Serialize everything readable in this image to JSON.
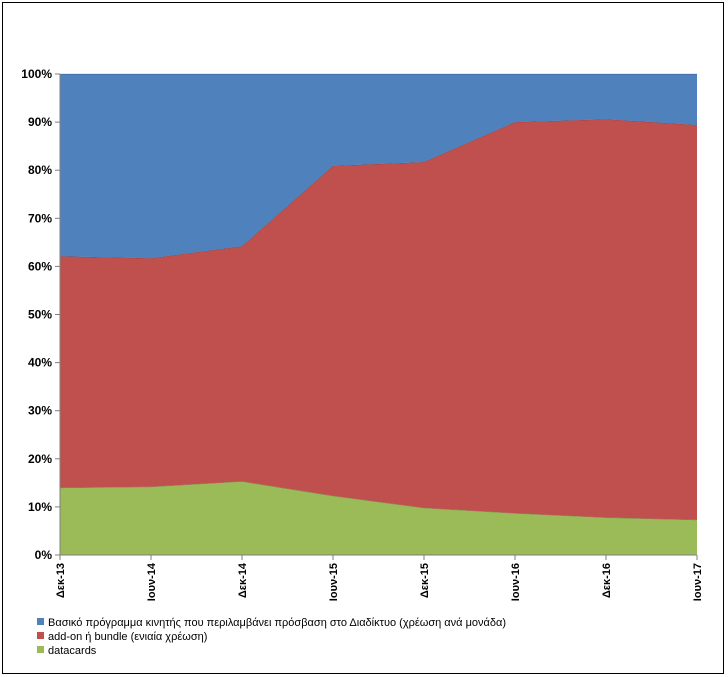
{
  "chart_data": {
    "type": "area",
    "stacked": true,
    "x": [
      "Δεκ-13",
      "Ιουν-14",
      "Δεκ-14",
      "Ιουν-15",
      "Δεκ-15",
      "Ιουν-16",
      "Δεκ-16",
      "Ιουν-17"
    ],
    "series": [
      {
        "name": "datacards",
        "color": "#9BBB59",
        "values": [
          14,
          14.2,
          15.3,
          12.3,
          9.8,
          8.7,
          7.8,
          7.3
        ]
      },
      {
        "name": "add-on ή bundle (ενιαία χρέωση)",
        "color": "#C0504D",
        "values": [
          48.1,
          47.5,
          48.9,
          68.6,
          71.9,
          81.3,
          82.8,
          82.1
        ]
      },
      {
        "name": "Βασικό πρόγραμμα κινητής  που περιλαμβάνει πρόσβαση στο Διαδίκτυο (χρέωση ανά μονάδα)",
        "color": "#4F81BD",
        "values": [
          37.9,
          38.3,
          35.8,
          19.1,
          18.3,
          10,
          9.4,
          10.6
        ]
      }
    ],
    "y_ticks": [
      "0%",
      "10%",
      "20%",
      "30%",
      "40%",
      "50%",
      "60%",
      "70%",
      "80%",
      "90%",
      "100%"
    ],
    "ylim": [
      0,
      100
    ],
    "legend_position": "bottom-left",
    "legend_order": [
      2,
      1,
      0
    ],
    "grid": false
  }
}
